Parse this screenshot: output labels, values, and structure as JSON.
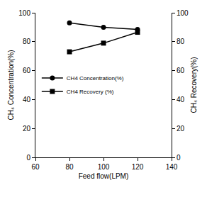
{
  "chart_data": {
    "type": "line",
    "x_label": "Feed flow(LPM)",
    "y_label": "CH₄ Concentration(%)",
    "y2_label": "CH₄ Recovery(%)",
    "x": [
      80,
      100,
      120
    ],
    "series": [
      {
        "name": "CH4 Concentration(%)",
        "color": "#000000",
        "marker": "circle",
        "values": [
          93,
          90,
          88.5
        ]
      },
      {
        "name": "CH4 Recovery (%)",
        "color": "#000000",
        "marker": "square",
        "axis": "y2",
        "values": [
          73,
          79,
          86.5
        ]
      }
    ],
    "xlim": [
      60,
      140
    ],
    "xticks": [
      60,
      80,
      100,
      120,
      140
    ],
    "ylim": [
      0,
      100
    ],
    "yticks": [
      0,
      20,
      40,
      60,
      80,
      100
    ],
    "y2lim": [
      0,
      100
    ],
    "y2ticks": [
      0,
      20,
      40,
      60,
      80,
      100
    ],
    "legend": "left",
    "grid": false
  }
}
